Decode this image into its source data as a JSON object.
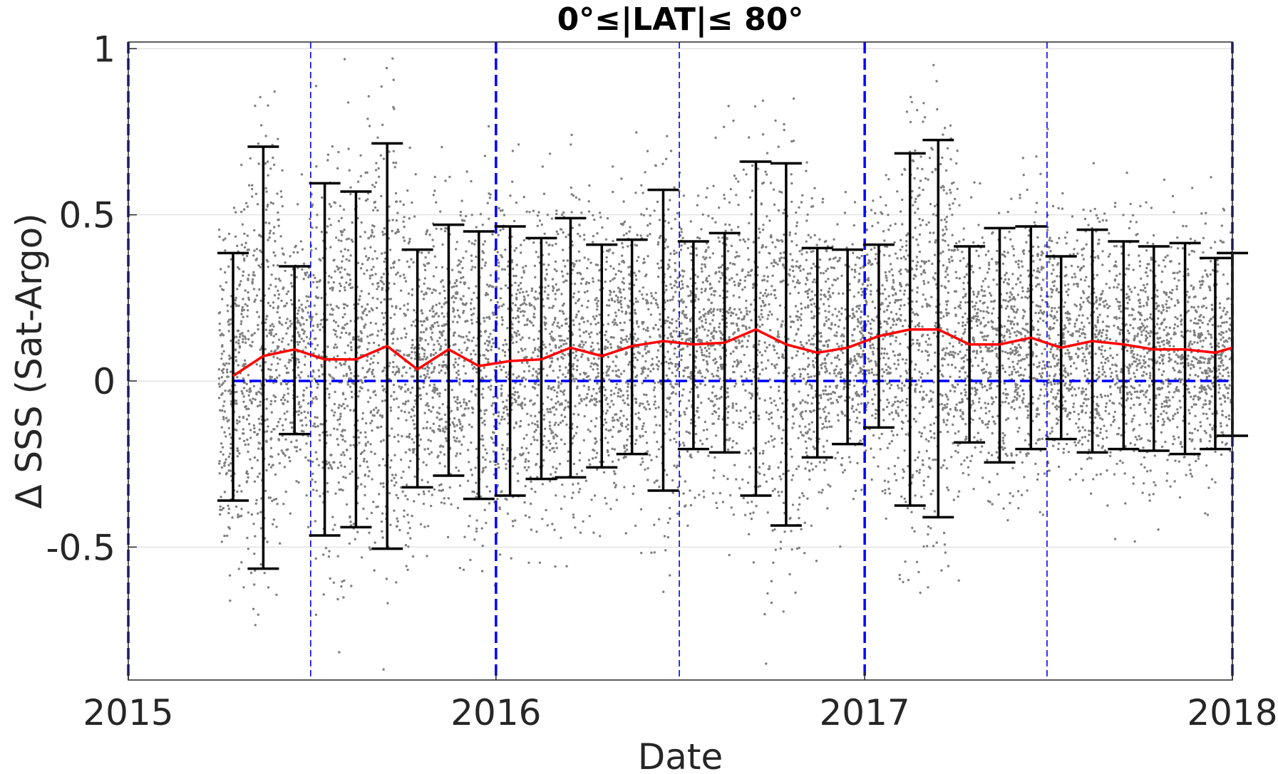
{
  "chart_data": {
    "type": "scatter",
    "title": "0°≤|LAT|≤ 80°",
    "xlabel": "Date",
    "ylabel": "Δ SSS (Sat-Argo)",
    "xlim": [
      "2015-01-01",
      "2018-01-01"
    ],
    "ylim": [
      -0.9,
      1.02
    ],
    "xticks": [
      {
        "date": "2015-01-01",
        "label": "2015"
      },
      {
        "date": "2016-01-01",
        "label": "2016"
      },
      {
        "date": "2017-01-01",
        "label": "2017"
      },
      {
        "date": "2018-01-01",
        "label": "2018"
      }
    ],
    "yticks": [
      {
        "value": 1,
        "label": "1"
      },
      {
        "value": 0.5,
        "label": "0.5"
      },
      {
        "value": 0,
        "label": "0"
      },
      {
        "value": -0.5,
        "label": "-0.5"
      }
    ],
    "grid": true,
    "scatter_color": "#808080",
    "mean_line_color": "#ff0000",
    "errorbar_color": "#000000",
    "reference_line_color": "#0000ff",
    "reference_line_y": 0,
    "year_boundary_lines": [
      "2015-01-01",
      "2016-01-01",
      "2017-01-01",
      "2018-01-01"
    ],
    "midyear_lines": [
      "2015-07-01",
      "2016-07-01",
      "2017-07-01"
    ],
    "scatter_range": [
      "2015-04-01",
      "2018-01-01"
    ],
    "series": [
      {
        "type": "errorbar",
        "points": [
          {
            "x": "2015-04-15",
            "y": 0.015,
            "lo": -0.36,
            "hi": 0.385
          },
          {
            "x": "2015-05-15",
            "y": 0.075,
            "lo": -0.565,
            "hi": 0.705
          },
          {
            "x": "2015-06-15",
            "y": 0.095,
            "lo": -0.16,
            "hi": 0.345
          },
          {
            "x": "2015-07-15",
            "y": 0.065,
            "lo": -0.465,
            "hi": 0.595
          },
          {
            "x": "2015-08-15",
            "y": 0.065,
            "lo": -0.44,
            "hi": 0.57
          },
          {
            "x": "2015-09-15",
            "y": 0.105,
            "lo": -0.505,
            "hi": 0.715
          },
          {
            "x": "2015-10-15",
            "y": 0.035,
            "lo": -0.32,
            "hi": 0.395
          },
          {
            "x": "2015-11-15",
            "y": 0.095,
            "lo": -0.285,
            "hi": 0.47
          },
          {
            "x": "2015-12-15",
            "y": 0.045,
            "lo": -0.355,
            "hi": 0.45
          },
          {
            "x": "2016-01-15",
            "y": 0.06,
            "lo": -0.345,
            "hi": 0.465
          },
          {
            "x": "2016-02-15",
            "y": 0.065,
            "lo": -0.295,
            "hi": 0.43
          },
          {
            "x": "2016-03-15",
            "y": 0.1,
            "lo": -0.29,
            "hi": 0.49
          },
          {
            "x": "2016-04-15",
            "y": 0.075,
            "lo": -0.26,
            "hi": 0.41
          },
          {
            "x": "2016-05-15",
            "y": 0.105,
            "lo": -0.22,
            "hi": 0.425
          },
          {
            "x": "2016-06-15",
            "y": 0.12,
            "lo": -0.33,
            "hi": 0.575
          },
          {
            "x": "2016-07-15",
            "y": 0.11,
            "lo": -0.205,
            "hi": 0.42
          },
          {
            "x": "2016-08-15",
            "y": 0.115,
            "lo": -0.215,
            "hi": 0.445
          },
          {
            "x": "2016-09-15",
            "y": 0.155,
            "lo": -0.345,
            "hi": 0.66
          },
          {
            "x": "2016-10-15",
            "y": 0.11,
            "lo": -0.435,
            "hi": 0.655
          },
          {
            "x": "2016-11-15",
            "y": 0.085,
            "lo": -0.23,
            "hi": 0.4
          },
          {
            "x": "2016-12-15",
            "y": 0.1,
            "lo": -0.19,
            "hi": 0.395
          },
          {
            "x": "2017-01-15",
            "y": 0.135,
            "lo": -0.14,
            "hi": 0.41
          },
          {
            "x": "2017-02-15",
            "y": 0.155,
            "lo": -0.375,
            "hi": 0.685
          },
          {
            "x": "2017-03-15",
            "y": 0.155,
            "lo": -0.41,
            "hi": 0.725
          },
          {
            "x": "2017-04-15",
            "y": 0.11,
            "lo": -0.185,
            "hi": 0.405
          },
          {
            "x": "2017-05-15",
            "y": 0.11,
            "lo": -0.245,
            "hi": 0.46
          },
          {
            "x": "2017-06-15",
            "y": 0.13,
            "lo": -0.205,
            "hi": 0.465
          },
          {
            "x": "2017-07-15",
            "y": 0.1,
            "lo": -0.175,
            "hi": 0.375
          },
          {
            "x": "2017-08-15",
            "y": 0.12,
            "lo": -0.215,
            "hi": 0.455
          },
          {
            "x": "2017-09-15",
            "y": 0.11,
            "lo": -0.205,
            "hi": 0.42
          },
          {
            "x": "2017-10-15",
            "y": 0.095,
            "lo": -0.21,
            "hi": 0.405
          },
          {
            "x": "2017-11-15",
            "y": 0.095,
            "lo": -0.22,
            "hi": 0.415
          },
          {
            "x": "2017-12-15",
            "y": 0.085,
            "lo": -0.205,
            "hi": 0.37
          },
          {
            "x": "2018-01-01",
            "y": 0.1,
            "lo": -0.165,
            "hi": 0.385
          }
        ]
      }
    ]
  }
}
